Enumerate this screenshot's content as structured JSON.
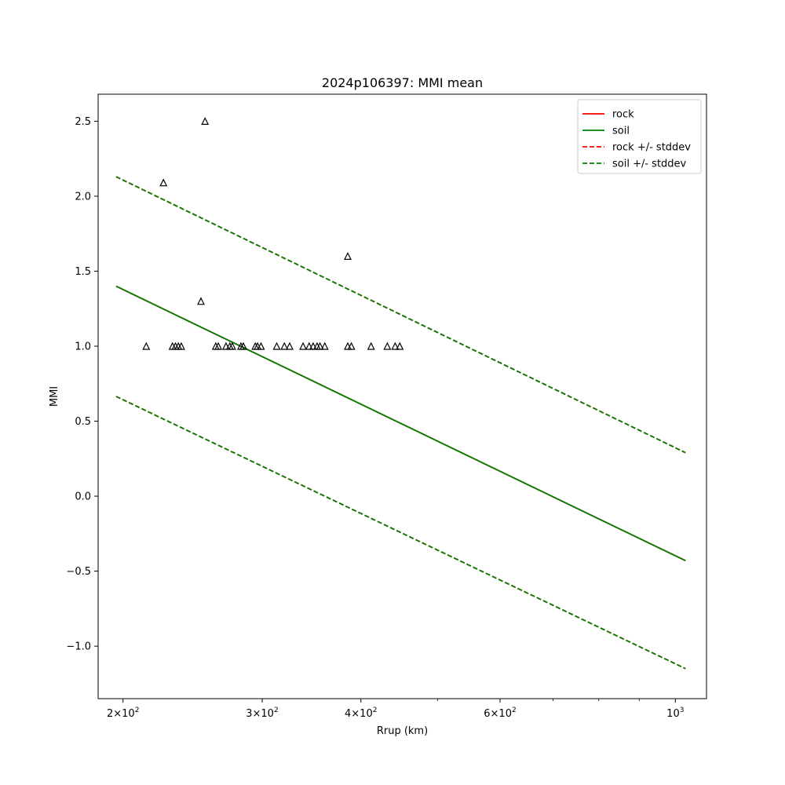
{
  "chart_data": {
    "type": "line",
    "title": "2024p106397: MMI mean",
    "xlabel": "Rrup (km)",
    "ylabel": "MMI",
    "xscale": "log",
    "xlim": [
      186,
      1095
    ],
    "ylim": [
      -1.35,
      2.68
    ],
    "x_ticks": [
      {
        "value": 200,
        "mantissa": "2",
        "exponent": "2"
      },
      {
        "value": 300,
        "mantissa": "3",
        "exponent": "2"
      },
      {
        "value": 400,
        "mantissa": "4",
        "exponent": "2"
      },
      {
        "value": 600,
        "mantissa": "6",
        "exponent": "2"
      },
      {
        "value": 1000,
        "mantissa": "",
        "exponent": "3"
      }
    ],
    "x_minor_ticks": [
      500,
      700,
      800,
      900
    ],
    "x_tick_base": "10",
    "x_tick_times": "×",
    "y_ticks": [
      {
        "value": -1.0,
        "label": "−1.0"
      },
      {
        "value": -0.5,
        "label": "−0.5"
      },
      {
        "value": 0.0,
        "label": "0.0"
      },
      {
        "value": 0.5,
        "label": "0.5"
      },
      {
        "value": 1.0,
        "label": "1.0"
      },
      {
        "value": 1.5,
        "label": "1.5"
      },
      {
        "value": 2.0,
        "label": "2.0"
      },
      {
        "value": 2.5,
        "label": "2.5"
      }
    ],
    "grid": false,
    "legend_position": "top-right",
    "series": [
      {
        "name": "rock",
        "color": "#ff0000",
        "dash": "solid",
        "x": [
          196,
          1030
        ],
        "y": [
          1.4,
          -0.43
        ]
      },
      {
        "name": "soil",
        "color": "#008000",
        "dash": "solid",
        "x": [
          196,
          1030
        ],
        "y": [
          1.4,
          -0.43
        ]
      },
      {
        "name": "rock +/- stddev",
        "color": "#ff0000",
        "dash": "dashed",
        "x": [
          196,
          1030
        ],
        "y": [
          2.13,
          0.29
        ],
        "lower_y": [
          0.665,
          -1.15
        ]
      },
      {
        "name": "soil +/- stddev",
        "color": "#008000",
        "dash": "dashed",
        "x": [
          196,
          1030
        ],
        "y": [
          2.13,
          0.29
        ],
        "lower_y": [
          0.665,
          -1.15
        ]
      }
    ],
    "observations": {
      "marker": "triangle",
      "color": "#000000",
      "points": [
        {
          "x": 254,
          "y": 2.5
        },
        {
          "x": 225,
          "y": 2.09
        },
        {
          "x": 385,
          "y": 1.6
        },
        {
          "x": 251,
          "y": 1.3
        },
        {
          "x": 214,
          "y": 1.0
        },
        {
          "x": 231,
          "y": 1.0
        },
        {
          "x": 233,
          "y": 1.0
        },
        {
          "x": 235,
          "y": 1.0
        },
        {
          "x": 237,
          "y": 1.0
        },
        {
          "x": 262,
          "y": 1.0
        },
        {
          "x": 264,
          "y": 1.0
        },
        {
          "x": 270,
          "y": 1.0
        },
        {
          "x": 273,
          "y": 1.0
        },
        {
          "x": 275,
          "y": 1.0
        },
        {
          "x": 282,
          "y": 1.0
        },
        {
          "x": 284,
          "y": 1.0
        },
        {
          "x": 294,
          "y": 1.0
        },
        {
          "x": 296,
          "y": 1.0
        },
        {
          "x": 299,
          "y": 1.0
        },
        {
          "x": 313,
          "y": 1.0
        },
        {
          "x": 320,
          "y": 1.0
        },
        {
          "x": 325,
          "y": 1.0
        },
        {
          "x": 338,
          "y": 1.0
        },
        {
          "x": 344,
          "y": 1.0
        },
        {
          "x": 348,
          "y": 1.0
        },
        {
          "x": 352,
          "y": 1.0
        },
        {
          "x": 355,
          "y": 1.0
        },
        {
          "x": 360,
          "y": 1.0
        },
        {
          "x": 385,
          "y": 1.0
        },
        {
          "x": 389,
          "y": 1.0
        },
        {
          "x": 412,
          "y": 1.0
        },
        {
          "x": 432,
          "y": 1.0
        },
        {
          "x": 442,
          "y": 1.0
        },
        {
          "x": 448,
          "y": 1.0
        }
      ]
    }
  }
}
